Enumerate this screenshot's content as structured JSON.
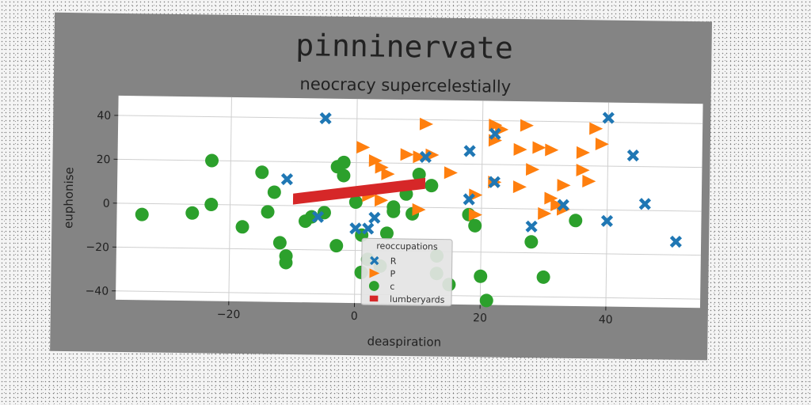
{
  "chart_data": {
    "type": "scatter",
    "suptitle": "pinninervate",
    "title": "neocracy supercelestially",
    "xlabel": "deaspiration",
    "ylabel": "euphonise",
    "xlim": [
      -38,
      55
    ],
    "ylim": [
      -44,
      49
    ],
    "xticks": [
      -20,
      0,
      20,
      40
    ],
    "xtick_labels": [
      "−20",
      "0",
      "20",
      "40"
    ],
    "yticks": [
      -40,
      -20,
      0,
      20,
      40
    ],
    "ytick_labels": [
      "−40",
      "−20",
      "0",
      "20",
      "40"
    ],
    "grid": true,
    "legend": {
      "title": "reoccupations",
      "placement": "lower-center"
    },
    "series": [
      {
        "name": "R",
        "marker": "x",
        "color": "#1f77b4",
        "points": [
          [
            -5,
            40
          ],
          [
            -11,
            12
          ],
          [
            -6,
            -5
          ],
          [
            0,
            -10
          ],
          [
            2,
            -10
          ],
          [
            3,
            -5
          ],
          [
            11,
            23
          ],
          [
            18,
            26
          ],
          [
            18,
            4
          ],
          [
            22,
            12
          ],
          [
            22,
            34
          ],
          [
            28,
            -8
          ],
          [
            33,
            2
          ],
          [
            40,
            42
          ],
          [
            44,
            25
          ],
          [
            46,
            3
          ],
          [
            40,
            -5
          ],
          [
            51,
            -14
          ]
        ]
      },
      {
        "name": "P",
        "marker": "triangle",
        "color": "#ff7f0e",
        "points": [
          [
            11,
            38
          ],
          [
            22,
            38
          ],
          [
            23,
            36
          ],
          [
            27,
            38
          ],
          [
            22,
            31
          ],
          [
            29,
            28
          ],
          [
            38,
            37
          ],
          [
            39,
            30
          ],
          [
            36,
            26
          ],
          [
            31,
            27
          ],
          [
            26,
            27
          ],
          [
            1,
            27
          ],
          [
            3,
            21
          ],
          [
            4,
            18
          ],
          [
            5,
            15
          ],
          [
            8,
            24
          ],
          [
            12,
            24
          ],
          [
            15,
            16
          ],
          [
            10,
            23
          ],
          [
            19,
            6
          ],
          [
            22,
            12
          ],
          [
            26,
            10
          ],
          [
            28,
            18
          ],
          [
            33,
            11
          ],
          [
            36,
            18
          ],
          [
            37,
            13
          ],
          [
            31,
            5
          ],
          [
            32,
            2
          ],
          [
            30,
            -2
          ],
          [
            33,
            0
          ],
          [
            10,
            -1
          ],
          [
            19,
            -3
          ],
          [
            2,
            5
          ],
          [
            4,
            3
          ]
        ]
      },
      {
        "name": "c",
        "marker": "circle",
        "color": "#2ca02c",
        "points": [
          [
            -34,
            -5
          ],
          [
            -26,
            -4
          ],
          [
            -23,
            0
          ],
          [
            -23,
            20
          ],
          [
            -18,
            -10
          ],
          [
            -15,
            15
          ],
          [
            -14,
            -3
          ],
          [
            -13,
            6
          ],
          [
            -12,
            -17
          ],
          [
            -11,
            -23
          ],
          [
            -11,
            -26
          ],
          [
            -8,
            -7
          ],
          [
            -7,
            -5
          ],
          [
            -5,
            -3
          ],
          [
            -3,
            18
          ],
          [
            -3,
            -18
          ],
          [
            -2,
            20
          ],
          [
            -2,
            14
          ],
          [
            0,
            2
          ],
          [
            1,
            -13
          ],
          [
            1,
            -30
          ],
          [
            2,
            -24
          ],
          [
            4,
            -27
          ],
          [
            5,
            -12
          ],
          [
            6,
            -2
          ],
          [
            6,
            0
          ],
          [
            8,
            6
          ],
          [
            9,
            -3
          ],
          [
            10,
            15
          ],
          [
            12,
            10
          ],
          [
            13,
            -22
          ],
          [
            13,
            -30
          ],
          [
            15,
            -35
          ],
          [
            18,
            -3
          ],
          [
            19,
            -8
          ],
          [
            20,
            -31
          ],
          [
            21,
            -42
          ],
          [
            28,
            -15
          ],
          [
            30,
            -31
          ],
          [
            35,
            -5
          ]
        ]
      },
      {
        "name": "lumberyards",
        "marker": "band",
        "color": "#d62728",
        "x": [
          -10,
          11
        ],
        "y": [
          3,
          11
        ],
        "thickness": 5
      }
    ]
  }
}
